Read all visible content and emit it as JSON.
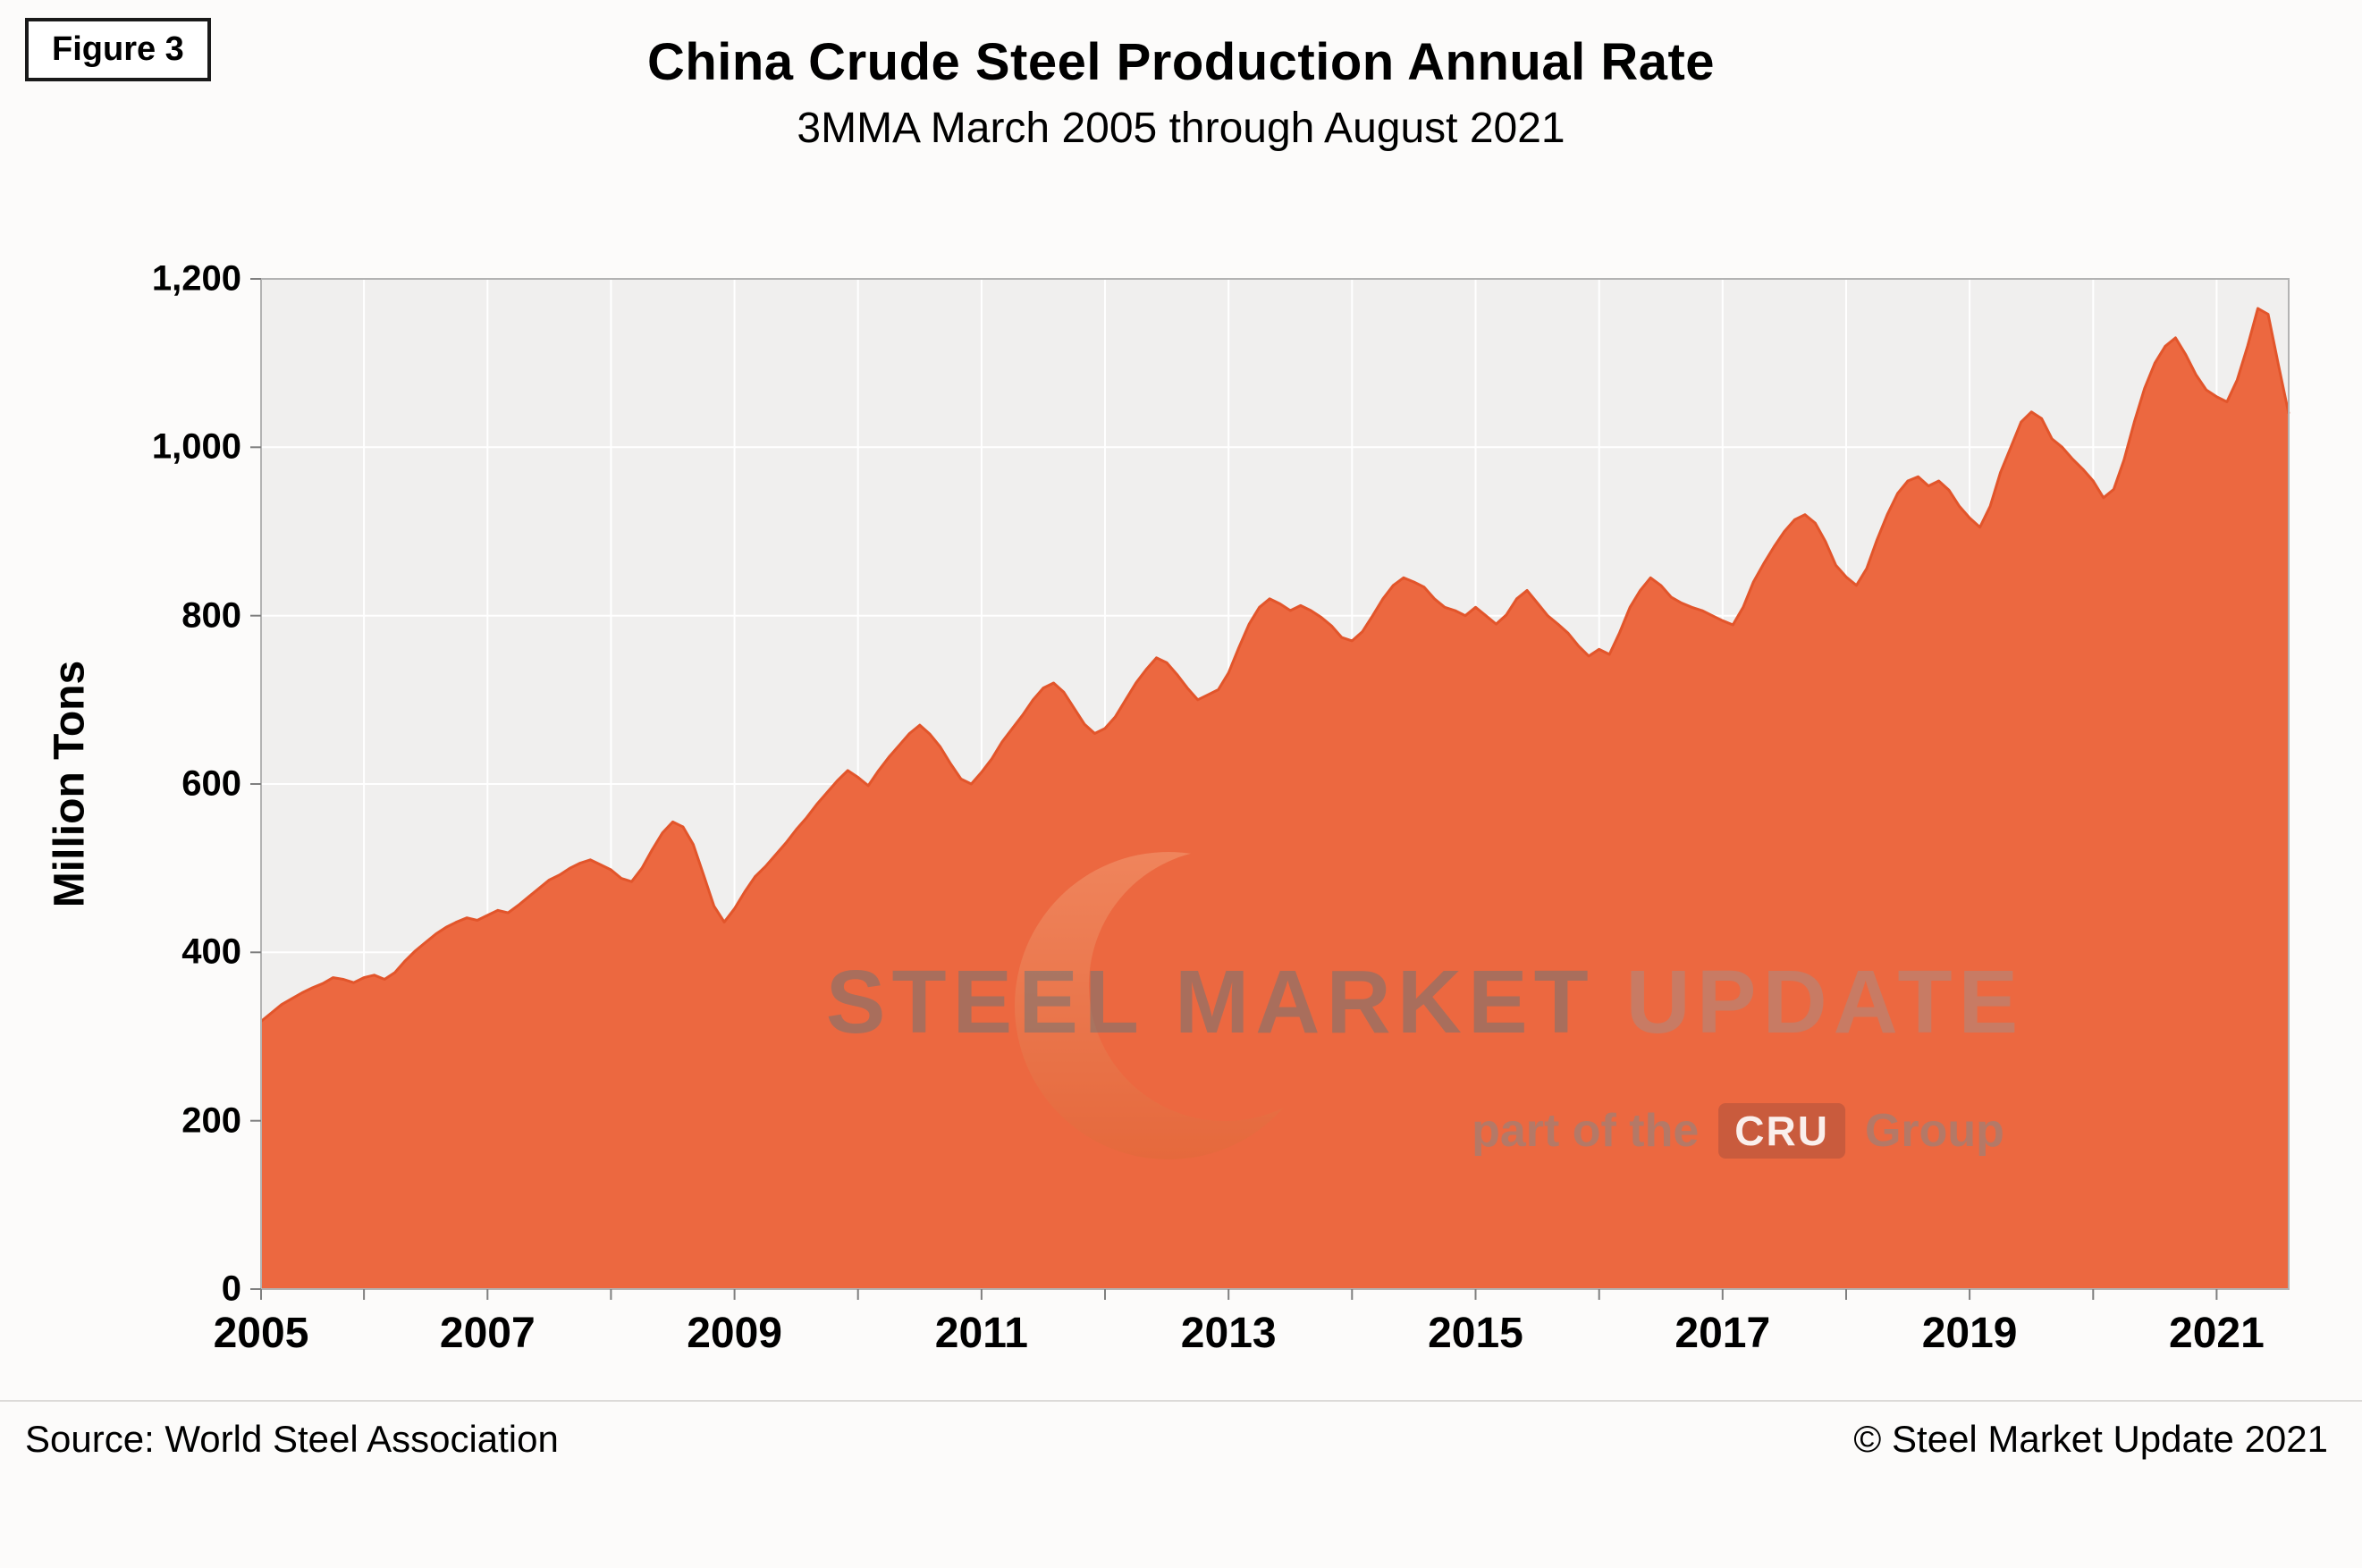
{
  "figure_label": "Figure 3",
  "title": "China Crude Steel Production Annual Rate",
  "subtitle": "3MMA March 2005 through August 2021",
  "source": "Source: World Steel Association",
  "copyright": "© Steel Market Update 2021",
  "watermark": {
    "main_left": "STEEL MARKET",
    "main_right": "UPDATE",
    "sub_prefix": "part of the",
    "cru": "CRU",
    "sub_suffix": "Group"
  },
  "colors": {
    "area_fill": "#EC6840",
    "area_stroke": "#E2552B",
    "plot_bg": "#F0EFEE",
    "grid": "#FFFFFF",
    "border": "#B3B3B3",
    "tick": "#7F7F7F",
    "text": "#000000"
  },
  "chart_data": {
    "type": "area",
    "title": "China Crude Steel Production Annual Rate",
    "subtitle": "3MMA March 2005 through August 2021",
    "xlabel": "",
    "ylabel": "Million Tons",
    "unit": "million tons, annualized rate (3-month moving average)",
    "xlim": [
      2005.1667,
      2021.5833
    ],
    "ylim": [
      0,
      1200
    ],
    "y_ticks": [
      0,
      200,
      400,
      600,
      800,
      1000,
      1200
    ],
    "y_tick_labels": [
      "0",
      "200",
      "400",
      "600",
      "800",
      "1,000",
      "1,200"
    ],
    "x_ticks": [
      2005,
      2007,
      2009,
      2011,
      2013,
      2015,
      2017,
      2019,
      2021
    ],
    "x_tick_labels": [
      "2005",
      "2007",
      "2009",
      "2011",
      "2013",
      "2015",
      "2017",
      "2019",
      "2021"
    ],
    "grid": true,
    "legend": "none",
    "start_year": 2005,
    "start_month": 3,
    "frequency": "monthly",
    "series": [
      {
        "name": "China crude steel production annual rate",
        "values": [
          318,
          328,
          338,
          345,
          352,
          358,
          363,
          370,
          368,
          364,
          370,
          373,
          368,
          376,
          390,
          402,
          412,
          422,
          430,
          436,
          441,
          438,
          444,
          450,
          447,
          456,
          466,
          476,
          486,
          492,
          500,
          506,
          510,
          504,
          498,
          488,
          484,
          500,
          522,
          542,
          555,
          549,
          528,
          492,
          455,
          436,
          452,
          472,
          490,
          502,
          516,
          530,
          546,
          560,
          576,
          590,
          604,
          616,
          608,
          598,
          616,
          632,
          646,
          660,
          670,
          659,
          644,
          624,
          606,
          600,
          614,
          630,
          650,
          666,
          682,
          700,
          714,
          720,
          709,
          690,
          671,
          660,
          666,
          680,
          700,
          720,
          736,
          750,
          744,
          730,
          714,
          700,
          706,
          712,
          732,
          762,
          790,
          810,
          820,
          814,
          806,
          812,
          806,
          798,
          788,
          774,
          770,
          781,
          800,
          820,
          836,
          845,
          840,
          834,
          820,
          810,
          806,
          800,
          810,
          800,
          790,
          801,
          820,
          830,
          815,
          800,
          790,
          779,
          764,
          752,
          760,
          754,
          780,
          810,
          830,
          845,
          836,
          822,
          815,
          810,
          806,
          800,
          794,
          789,
          810,
          840,
          862,
          882,
          900,
          914,
          920,
          910,
          888,
          860,
          846,
          836,
          856,
          890,
          920,
          945,
          960,
          965,
          954,
          960,
          949,
          930,
          916,
          905,
          930,
          970,
          1000,
          1030,
          1042,
          1034,
          1010,
          1000,
          986,
          974,
          960,
          940,
          950,
          985,
          1030,
          1070,
          1100,
          1120,
          1130,
          1110,
          1086,
          1068,
          1060,
          1054,
          1080,
          1120,
          1165,
          1158,
          1098,
          1040
        ]
      }
    ]
  }
}
